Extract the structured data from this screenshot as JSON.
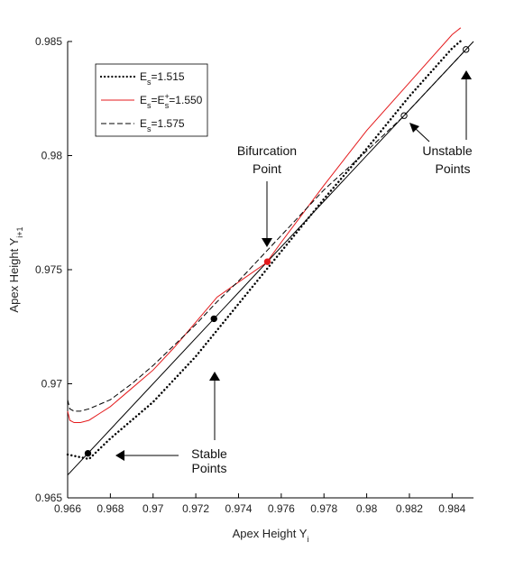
{
  "chart_data": {
    "type": "line",
    "xlabel": {
      "main": "Apex Height Y",
      "sub": "i"
    },
    "ylabel": {
      "main": "Apex Height Y",
      "sub": "i+1"
    },
    "xlim": [
      0.966,
      0.985
    ],
    "ylim": [
      0.965,
      0.985
    ],
    "xticks": [
      0.966,
      0.968,
      0.97,
      0.972,
      0.974,
      0.976,
      0.978,
      0.98,
      0.982,
      0.984
    ],
    "xtick_labels": [
      "0.966",
      "0.968",
      "0.97",
      "0.972",
      "0.974",
      "0.976",
      "0.978",
      "0.98",
      "0.982",
      "0.984"
    ],
    "yticks": [
      0.965,
      0.97,
      0.975,
      0.98,
      0.985
    ],
    "ytick_labels": [
      "0.965",
      "0.97",
      "0.975",
      "0.98",
      "0.985"
    ],
    "legend": {
      "placement": "top-left",
      "entries": [
        {
          "pre": "E",
          "sub": "s",
          "sup": "",
          "post": "=1.515"
        },
        {
          "pre": "E",
          "sub": "s",
          "mid": "=E",
          "sup": "+",
          "sub2": "s",
          "post": "=1.550"
        },
        {
          "pre": "E",
          "sub": "s",
          "sup": "",
          "post": "=1.575"
        }
      ]
    },
    "colors": {
      "identity": "#000000",
      "es1515": "#000000",
      "es1550": "#e41a1c",
      "es1575": "#000000",
      "bifurcation": "#e41a1c"
    },
    "series": [
      {
        "key": "identity",
        "style": "solid",
        "x": [
          0.966,
          0.985
        ],
        "y": [
          0.966,
          0.985
        ]
      },
      {
        "key": "es1515",
        "style": "dotted",
        "x": [
          0.966,
          0.967,
          0.968,
          0.97,
          0.972,
          0.974,
          0.976,
          0.978,
          0.98,
          0.982,
          0.984,
          0.9845
        ],
        "y": [
          0.9669,
          0.9667,
          0.9676,
          0.9692,
          0.9712,
          0.9735,
          0.9758,
          0.9781,
          0.9803,
          0.9826,
          0.9847,
          0.9851
        ]
      },
      {
        "key": "es1550",
        "style": "solid",
        "x": [
          0.966,
          0.9661,
          0.9663,
          0.9666,
          0.967,
          0.9675,
          0.968,
          0.969,
          0.97,
          0.971,
          0.972,
          0.973,
          0.9753,
          0.976,
          0.978,
          0.98,
          0.982,
          0.984,
          0.9844
        ],
        "y": [
          0.9688,
          0.9684,
          0.9683,
          0.9683,
          0.9684,
          0.9687,
          0.969,
          0.9698,
          0.9706,
          0.9716,
          0.9727,
          0.9738,
          0.9753,
          0.9762,
          0.9787,
          0.9811,
          0.9832,
          0.9853,
          0.9856
        ]
      },
      {
        "key": "es1575",
        "style": "dashed",
        "x": [
          0.966,
          0.9661,
          0.9663,
          0.9666,
          0.967,
          0.968,
          0.969,
          0.97,
          0.971,
          0.972,
          0.973,
          0.974,
          0.976,
          0.978,
          0.98,
          0.9817,
          0.9846
        ],
        "y": [
          0.9693,
          0.9689,
          0.9688,
          0.9688,
          0.9689,
          0.9693,
          0.97,
          0.9708,
          0.9717,
          0.9726,
          0.9736,
          0.9745,
          0.9765,
          0.9785,
          0.9802,
          0.9817,
          0.9846
        ]
      }
    ],
    "points": [
      {
        "x": 0.96695,
        "y": 0.96695,
        "fill": "#000000",
        "stroke": "#000000",
        "name": "stable-point-1"
      },
      {
        "x": 0.97285,
        "y": 0.97285,
        "fill": "#000000",
        "stroke": "#000000",
        "name": "stable-point-2"
      },
      {
        "x": 0.97535,
        "y": 0.97535,
        "fill": "#e41a1c",
        "stroke": "#e41a1c",
        "name": "bifurcation-point"
      },
      {
        "x": 0.98175,
        "y": 0.98175,
        "fill": "none",
        "stroke": "#000000",
        "name": "unstable-point-1"
      },
      {
        "x": 0.98465,
        "y": 0.98465,
        "fill": "none",
        "stroke": "#000000",
        "name": "unstable-point-2"
      }
    ],
    "annotations": {
      "bifurcation": [
        "Bifurcation",
        "Point"
      ],
      "unstable": [
        "Unstable",
        "Points"
      ],
      "stable": [
        "Stable",
        "Points"
      ]
    }
  }
}
